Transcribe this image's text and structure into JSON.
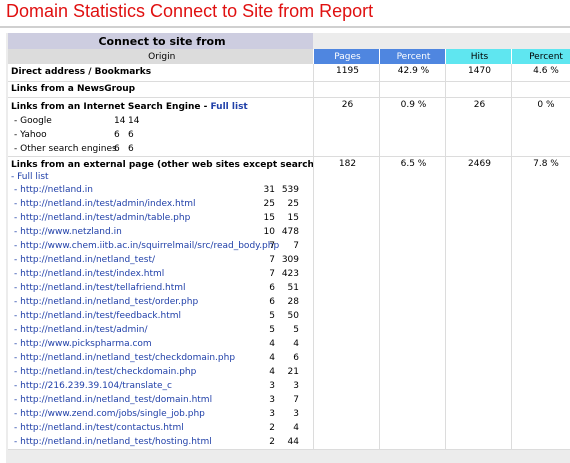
{
  "page_title": "Domain Statistics Connect to Site from Report",
  "section_title": "Connect to site from",
  "columns": {
    "origin": "Origin",
    "pages": "Pages",
    "percent1": "Percent",
    "hits": "Hits",
    "percent2": "Percent"
  },
  "direct": {
    "label": "Direct address / Bookmarks",
    "pages": "1195",
    "percent1": "42.9 %",
    "hits": "1470",
    "percent2": "4.6 %"
  },
  "newsgroup": {
    "label": "Links from a NewsGroup"
  },
  "search": {
    "label": "Links from an Internet Search Engine - ",
    "full_list": "Full list",
    "pages": "26",
    "percent1": "0.9 %",
    "hits": "26",
    "percent2": "0 %",
    "items": [
      {
        "name": "- Google",
        "pages": "14",
        "hits": "14"
      },
      {
        "name": "- Yahoo",
        "pages": "6",
        "hits": "6"
      },
      {
        "name": "- Other search engines",
        "pages": "6",
        "hits": "6"
      }
    ]
  },
  "external": {
    "label": "Links from an external page (other web sites except search engines)",
    "full_list": "- Full list",
    "pages": "182",
    "percent1": "6.5 %",
    "hits": "2469",
    "percent2": "7.8 %",
    "items": [
      {
        "url": "- http://netland.in",
        "pages": "31",
        "hits": "539"
      },
      {
        "url": "- http://netland.in/test/admin/index.html",
        "pages": "25",
        "hits": "25"
      },
      {
        "url": "- http://netland.in/test/admin/table.php",
        "pages": "15",
        "hits": "15"
      },
      {
        "url": "- http://www.netzland.in",
        "pages": "10",
        "hits": "478"
      },
      {
        "url": "- http://www.chem.iitb.ac.in/squirrelmail/src/read_body.php",
        "pages": "7",
        "hits": "7"
      },
      {
        "url": "- http://netland.in/netland_test/",
        "pages": "7",
        "hits": "309"
      },
      {
        "url": "- http://netland.in/test/index.html",
        "pages": "7",
        "hits": "423"
      },
      {
        "url": "- http://netland.in/test/tellafriend.html",
        "pages": "6",
        "hits": "51"
      },
      {
        "url": "- http://netland.in/netland_test/order.php",
        "pages": "6",
        "hits": "28"
      },
      {
        "url": "- http://netland.in/test/feedback.html",
        "pages": "5",
        "hits": "50"
      },
      {
        "url": "- http://netland.in/test/admin/",
        "pages": "5",
        "hits": "5"
      },
      {
        "url": "- http://www.pickspharma.com",
        "pages": "4",
        "hits": "4"
      },
      {
        "url": "- http://netland.in/netland_test/checkdomain.php",
        "pages": "4",
        "hits": "6"
      },
      {
        "url": "- http://netland.in/test/checkdomain.php",
        "pages": "4",
        "hits": "21"
      },
      {
        "url": "- http://216.239.39.104/translate_c",
        "pages": "3",
        "hits": "3"
      },
      {
        "url": "- http://netland.in/netland_test/domain.html",
        "pages": "3",
        "hits": "7"
      },
      {
        "url": "- http://www.zend.com/jobs/single_job.php",
        "pages": "3",
        "hits": "3"
      },
      {
        "url": "- http://netland.in/test/contactus.html",
        "pages": "2",
        "hits": "4"
      },
      {
        "url": "- http://netland.in/netland_test/hosting.html",
        "pages": "2",
        "hits": "44"
      }
    ]
  }
}
